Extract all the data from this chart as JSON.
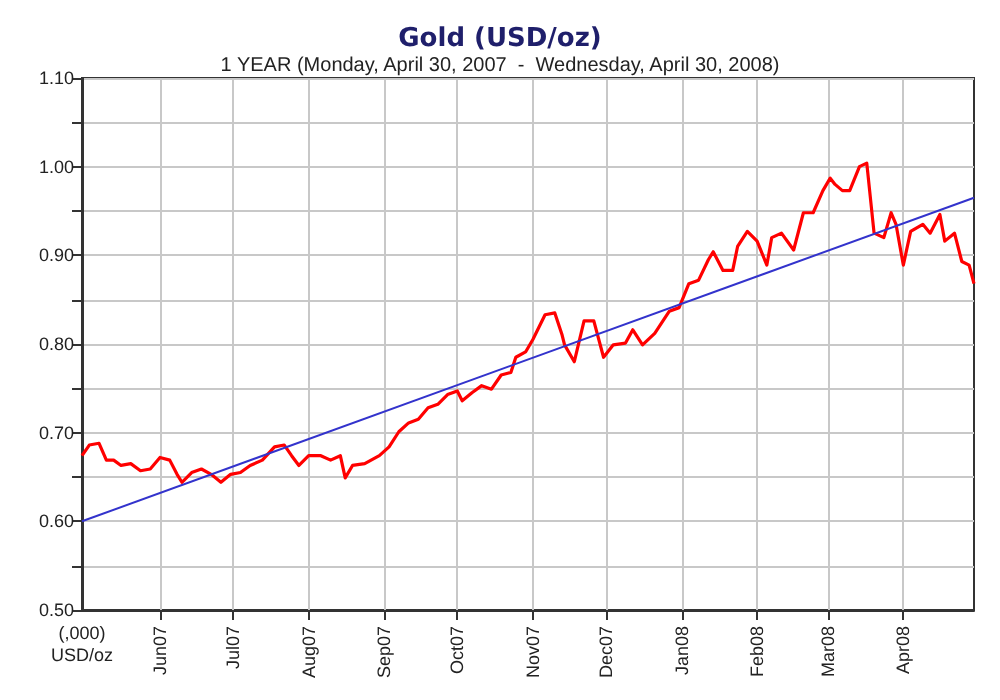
{
  "chart_data": {
    "type": "line",
    "title": "Gold (USD/oz)",
    "subtitle": "1 YEAR (Monday, April 30, 2007  -  Wednesday, April 30, 2008)",
    "ylabel": "(,000) USD/oz",
    "xlim": [
      "2007-04-30",
      "2008-04-30"
    ],
    "xticks": [
      {
        "value": "2007-06-01",
        "label": "Jun07"
      },
      {
        "value": "2007-07-01",
        "label": "Jul07"
      },
      {
        "value": "2007-08-01",
        "label": "Aug07"
      },
      {
        "value": "2007-09-01",
        "label": "Sep07"
      },
      {
        "value": "2007-10-01",
        "label": "Oct07"
      },
      {
        "value": "2007-11-01",
        "label": "Nov07"
      },
      {
        "value": "2007-12-01",
        "label": "Dec07"
      },
      {
        "value": "2008-01-01",
        "label": "Jan08"
      },
      {
        "value": "2008-02-01",
        "label": "Feb08"
      },
      {
        "value": "2008-03-01",
        "label": "Mar08"
      },
      {
        "value": "2008-04-01",
        "label": "Apr08"
      }
    ],
    "ylim": [
      0.5,
      1.1
    ],
    "yticks": [
      {
        "value": 0.5,
        "label": "0.50"
      },
      {
        "value": 0.55,
        "label": null
      },
      {
        "value": 0.6,
        "label": "0.60"
      },
      {
        "value": 0.65,
        "label": null
      },
      {
        "value": 0.7,
        "label": "0.70"
      },
      {
        "value": 0.75,
        "label": null
      },
      {
        "value": 0.8,
        "label": "0.80"
      },
      {
        "value": 0.85,
        "label": null
      },
      {
        "value": 0.9,
        "label": "0.90"
      },
      {
        "value": 0.95,
        "label": null
      },
      {
        "value": 1.0,
        "label": "1.00"
      },
      {
        "value": 1.05,
        "label": null
      },
      {
        "value": 1.1,
        "label": "1.10"
      }
    ],
    "grid": true,
    "marker": "none",
    "line_style": "solid",
    "series": [
      {
        "color": "#ff0000",
        "x": [
          "2007-04-30",
          "2007-05-03",
          "2007-05-07",
          "2007-05-10",
          "2007-05-13",
          "2007-05-16",
          "2007-05-20",
          "2007-05-24",
          "2007-05-28",
          "2007-06-01",
          "2007-06-05",
          "2007-06-08",
          "2007-06-10",
          "2007-06-14",
          "2007-06-18",
          "2007-06-22",
          "2007-06-26",
          "2007-06-30",
          "2007-07-04",
          "2007-07-08",
          "2007-07-13",
          "2007-07-18",
          "2007-07-22",
          "2007-07-25",
          "2007-07-28",
          "2007-08-01",
          "2007-08-06",
          "2007-08-10",
          "2007-08-14",
          "2007-08-16",
          "2007-08-19",
          "2007-08-24",
          "2007-08-30",
          "2007-09-03",
          "2007-09-07",
          "2007-09-11",
          "2007-09-15",
          "2007-09-19",
          "2007-09-23",
          "2007-09-27",
          "2007-10-01",
          "2007-10-03",
          "2007-10-07",
          "2007-10-11",
          "2007-10-15",
          "2007-10-19",
          "2007-10-23",
          "2007-10-25",
          "2007-10-29",
          "2007-11-01",
          "2007-11-06",
          "2007-11-10",
          "2007-11-13",
          "2007-11-14",
          "2007-11-18",
          "2007-11-22",
          "2007-11-26",
          "2007-11-30",
          "2007-12-04",
          "2007-12-09",
          "2007-12-12",
          "2007-12-16",
          "2007-12-21",
          "2007-12-27",
          "2007-12-31",
          "2008-01-04",
          "2008-01-08",
          "2008-01-12",
          "2008-01-14",
          "2008-01-18",
          "2008-01-22",
          "2008-01-24",
          "2008-01-28",
          "2008-02-01",
          "2008-02-05",
          "2008-02-07",
          "2008-02-11",
          "2008-02-16",
          "2008-02-20",
          "2008-02-24",
          "2008-02-28",
          "2008-03-02",
          "2008-03-04",
          "2008-03-07",
          "2008-03-10",
          "2008-03-14",
          "2008-03-17",
          "2008-03-20",
          "2008-03-24",
          "2008-03-27",
          "2008-03-29",
          "2008-04-01",
          "2008-04-04",
          "2008-04-09",
          "2008-04-12",
          "2008-04-16",
          "2008-04-18",
          "2008-04-22",
          "2008-04-25",
          "2008-04-28",
          "2008-04-30"
        ],
        "values": [
          0.674,
          0.686,
          0.688,
          0.669,
          0.669,
          0.663,
          0.665,
          0.657,
          0.659,
          0.672,
          0.669,
          0.653,
          0.644,
          0.655,
          0.659,
          0.653,
          0.644,
          0.653,
          0.655,
          0.663,
          0.669,
          0.684,
          0.686,
          0.674,
          0.663,
          0.674,
          0.674,
          0.669,
          0.674,
          0.649,
          0.663,
          0.665,
          0.674,
          0.684,
          0.701,
          0.711,
          0.715,
          0.728,
          0.732,
          0.743,
          0.747,
          0.736,
          0.745,
          0.753,
          0.749,
          0.765,
          0.768,
          0.785,
          0.791,
          0.805,
          0.833,
          0.835,
          0.81,
          0.799,
          0.78,
          0.826,
          0.826,
          0.785,
          0.799,
          0.801,
          0.816,
          0.799,
          0.812,
          0.837,
          0.841,
          0.868,
          0.872,
          0.895,
          0.904,
          0.883,
          0.883,
          0.91,
          0.927,
          0.916,
          0.889,
          0.92,
          0.925,
          0.906,
          0.948,
          0.948,
          0.973,
          0.987,
          0.98,
          0.973,
          0.973,
          1.0,
          1.004,
          0.925,
          0.92,
          0.948,
          0.935,
          0.889,
          0.927,
          0.935,
          0.925,
          0.946,
          0.916,
          0.925,
          0.893,
          0.889,
          0.868
        ]
      },
      {
        "color": "#3333cc",
        "x": [
          "2007-04-30",
          "2008-04-30"
        ],
        "values": [
          0.6,
          0.965
        ]
      }
    ]
  }
}
